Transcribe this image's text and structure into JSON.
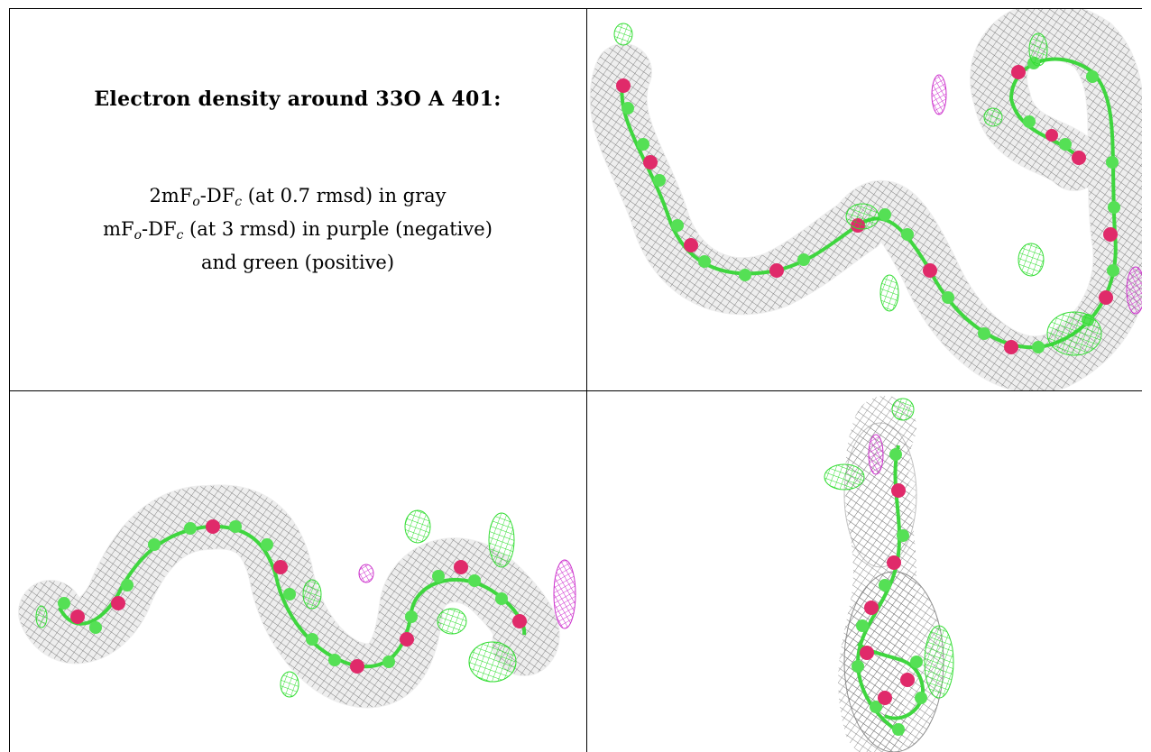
{
  "caption": {
    "title": "Electron density around 33O A 401:",
    "line1_prefix": "2mF",
    "line1_sub1": "o",
    "line1_mid": "-DF",
    "line1_sub2": "c",
    "line1_suffix": " (at 0.7 rmsd) in gray",
    "line2_prefix": "mF",
    "line2_sub1": "o",
    "line2_mid": "-DF",
    "line2_sub2": "c",
    "line2_suffix": " (at 3 rmsd) in purple (negative)",
    "line3": "and green (positive)"
  },
  "views": [
    {
      "name": "top-right-view"
    },
    {
      "name": "bottom-left-view"
    },
    {
      "name": "bottom-right-view"
    }
  ],
  "colors": {
    "density_2fofc": "#8a8a8a",
    "density_positive": "#33dd33",
    "density_negative": "#cc33cc",
    "carbon_atoms": "#55e055",
    "oxygen_atoms": "#e02a6a"
  }
}
